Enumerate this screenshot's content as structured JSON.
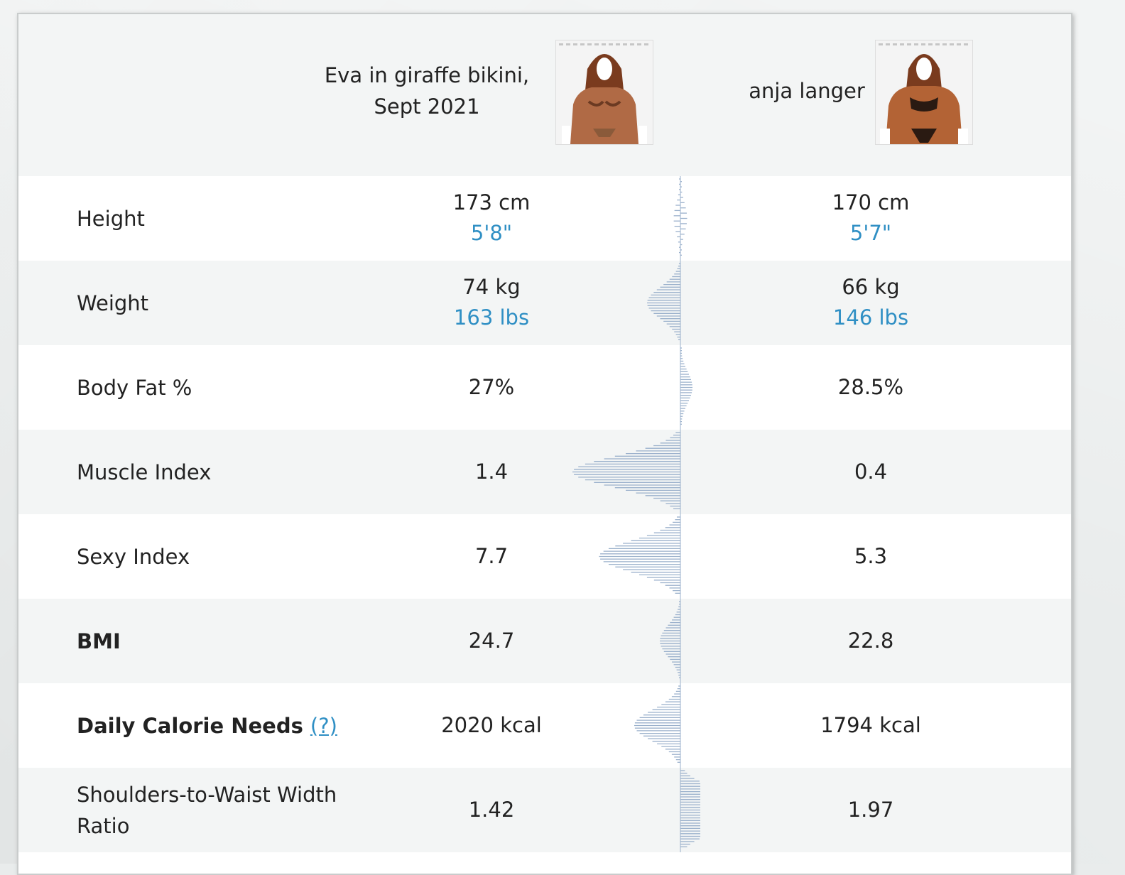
{
  "people": [
    {
      "name_line1": "Eva in giraffe bikini,",
      "name_line2": "Sept 2021",
      "photo_icon": "woman-bikini-photo"
    },
    {
      "name_line1": "anja langer",
      "name_line2": "",
      "photo_icon": "woman-bodybuilder-photo"
    }
  ],
  "colors": {
    "link": "#2f8fc4",
    "dist_bar": "#9bb1cc",
    "row_alt": "#f3f5f5"
  },
  "rows": [
    {
      "label": "Height",
      "bold": false,
      "a_main": "173 cm",
      "a_sub": "5'8\"",
      "b_main": "170 cm",
      "b_sub": "5'7\"",
      "dist_side": "center",
      "dist_strength": 0.05
    },
    {
      "label": "Weight",
      "bold": false,
      "a_main": "74 kg",
      "a_sub": "163 lbs",
      "b_main": "66 kg",
      "b_sub": "146 lbs",
      "dist_side": "left",
      "dist_strength": 0.3
    },
    {
      "label": "Body Fat %",
      "bold": false,
      "a_main": "27%",
      "a_sub": "",
      "b_main": "28.5%",
      "b_sub": "",
      "dist_side": "right",
      "dist_strength": 0.1
    },
    {
      "label": "Muscle Index",
      "bold": false,
      "a_main": "1.4",
      "a_sub": "",
      "b_main": "0.4",
      "b_sub": "",
      "dist_side": "left",
      "dist_strength": 1.0
    },
    {
      "label": "Sexy Index",
      "bold": false,
      "a_main": "7.7",
      "a_sub": "",
      "b_main": "5.3",
      "b_sub": "",
      "dist_side": "left",
      "dist_strength": 0.75
    },
    {
      "label": "BMI",
      "bold": true,
      "a_main": "24.7",
      "a_sub": "",
      "b_main": "22.8",
      "b_sub": "",
      "dist_side": "left",
      "dist_strength": 0.18
    },
    {
      "label": "Daily Calorie Needs",
      "bold": true,
      "help": "(?)",
      "a_main": "2020 kcal",
      "a_sub": "",
      "b_main": "1794 kcal",
      "b_sub": "",
      "dist_side": "left",
      "dist_strength": 0.42
    },
    {
      "label": "Shoulders-to-Waist Width",
      "label2": "Ratio",
      "bold": false,
      "a_main": "1.42",
      "a_sub": "",
      "b_main": "1.97",
      "b_sub": "",
      "dist_side": "right",
      "dist_strength": 0.95
    }
  ]
}
